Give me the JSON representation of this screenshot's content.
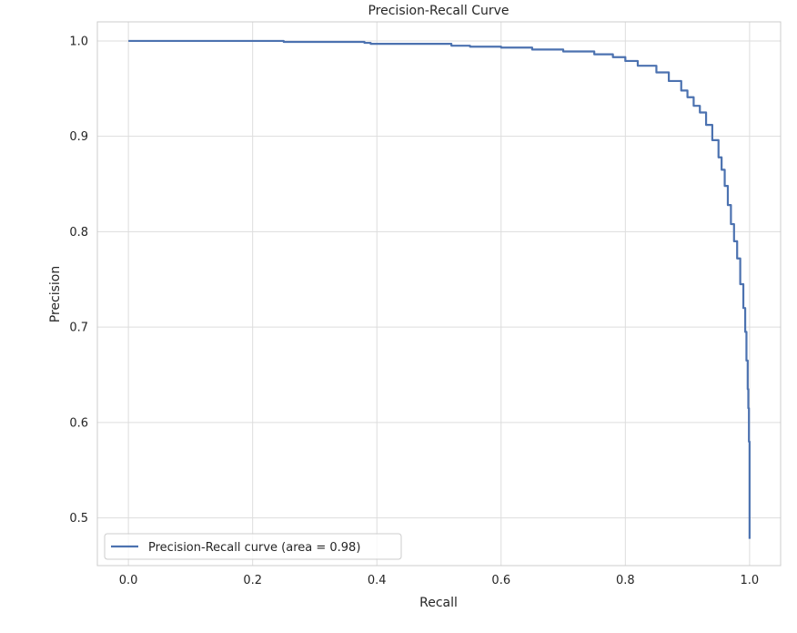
{
  "chart_data": {
    "type": "line",
    "title": "Precision-Recall Curve",
    "xlabel": "Recall",
    "ylabel": "Precision",
    "xlim": [
      -0.05,
      1.05
    ],
    "ylim": [
      0.45,
      1.02
    ],
    "xticks": [
      0.0,
      0.2,
      0.4,
      0.6,
      0.8,
      1.0
    ],
    "xtick_labels": [
      "0.0",
      "0.2",
      "0.4",
      "0.6",
      "0.8",
      "1.0"
    ],
    "yticks": [
      0.5,
      0.6,
      0.7,
      0.8,
      0.9,
      1.0
    ],
    "ytick_labels": [
      "0.5",
      "0.6",
      "0.7",
      "0.8",
      "0.9",
      "1.0"
    ],
    "grid": true,
    "legend_position": "lower-left",
    "series": [
      {
        "name": "Precision-Recall curve (area = 0.98)",
        "color": "#4c72b0",
        "x": [
          0.0,
          0.1,
          0.2,
          0.245,
          0.25,
          0.35,
          0.38,
          0.39,
          0.45,
          0.52,
          0.55,
          0.6,
          0.65,
          0.7,
          0.75,
          0.78,
          0.8,
          0.82,
          0.85,
          0.87,
          0.89,
          0.9,
          0.91,
          0.92,
          0.93,
          0.94,
          0.95,
          0.955,
          0.96,
          0.965,
          0.97,
          0.975,
          0.98,
          0.985,
          0.99,
          0.993,
          0.995,
          0.997,
          0.998,
          0.999,
          1.0,
          1.0
        ],
        "y": [
          1.0,
          1.0,
          1.0,
          1.0,
          0.999,
          0.999,
          0.998,
          0.997,
          0.997,
          0.995,
          0.994,
          0.993,
          0.991,
          0.989,
          0.986,
          0.983,
          0.979,
          0.974,
          0.967,
          0.958,
          0.948,
          0.941,
          0.932,
          0.925,
          0.912,
          0.896,
          0.878,
          0.865,
          0.848,
          0.828,
          0.808,
          0.79,
          0.772,
          0.745,
          0.72,
          0.695,
          0.665,
          0.635,
          0.615,
          0.58,
          0.55,
          0.478
        ]
      }
    ]
  }
}
